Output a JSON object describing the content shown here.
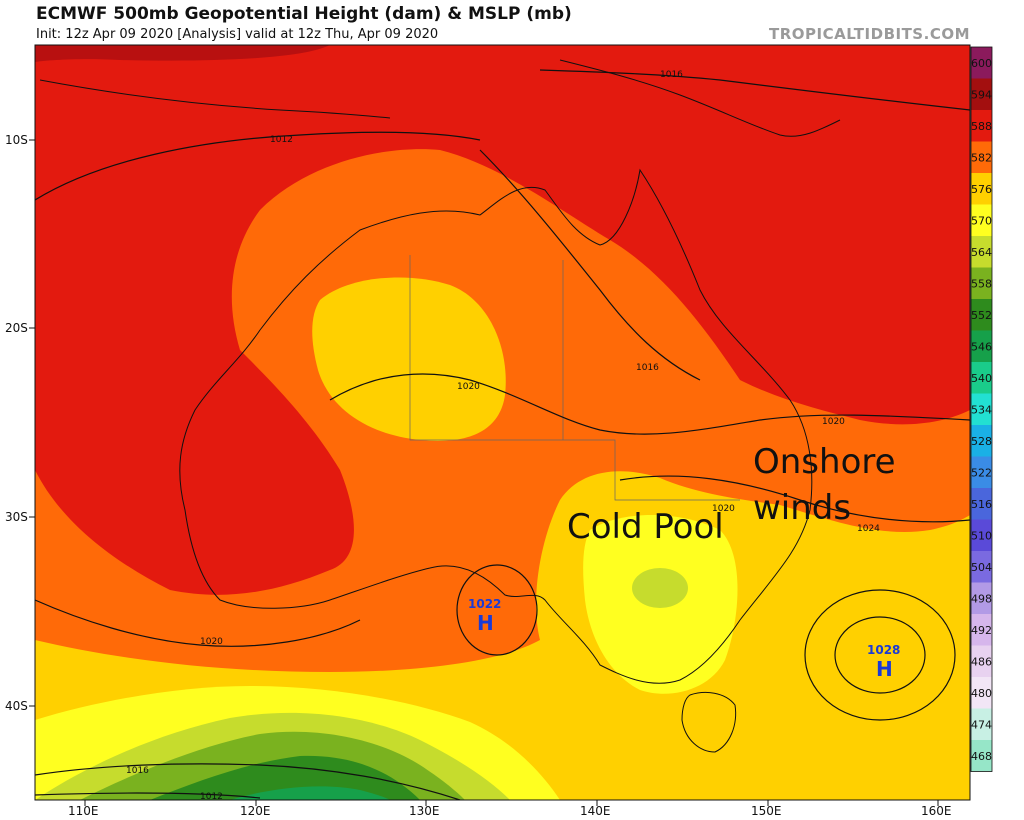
{
  "header": {
    "title": "ECMWF 500mb Geopotential Height (dam) & MSLP (mb)",
    "subtitle": "Init: 12z Apr 09 2020   [Analysis]   valid at 12z Thu, Apr 09 2020",
    "credit": "TROPICALTIDBITS.COM"
  },
  "axes": {
    "lat_labels": [
      "10S",
      "20S",
      "30S",
      "40S"
    ],
    "lon_labels": [
      "110E",
      "120E",
      "130E",
      "140E",
      "150E",
      "160E"
    ]
  },
  "colorbar": {
    "labels": [
      "600",
      "594",
      "588",
      "582",
      "576",
      "570",
      "564",
      "558",
      "552",
      "546",
      "540",
      "534",
      "528",
      "522",
      "516",
      "510",
      "504",
      "498",
      "492",
      "486",
      "480",
      "474",
      "468"
    ],
    "colors": [
      "#8b1a5c",
      "#a30f0f",
      "#e31a0f",
      "#ff6a08",
      "#ffd000",
      "#ffff20",
      "#c6dc2d",
      "#7ab21f",
      "#2e8b1d",
      "#16a04a",
      "#1acc8a",
      "#22e0d2",
      "#1ab0e6",
      "#3a8ce6",
      "#4a66dc",
      "#5a4ad8",
      "#7a6ae0",
      "#b29ae6",
      "#d6b6ec",
      "#e8d2f0",
      "#f2e6f6",
      "#c8f0e4",
      "#96e6c8"
    ]
  },
  "pressure_centers": [
    {
      "label": "1022",
      "symbol": "H"
    },
    {
      "label": "1028",
      "symbol": "H"
    }
  ],
  "isobar_labels": [
    "1012",
    "1016",
    "1016",
    "1020",
    "1020",
    "1020",
    "1020",
    "1024",
    "1016",
    "1012"
  ],
  "annotations": {
    "cold_pool": "Cold Pool",
    "onshore_line1": "Onshore",
    "onshore_line2": "winds"
  }
}
